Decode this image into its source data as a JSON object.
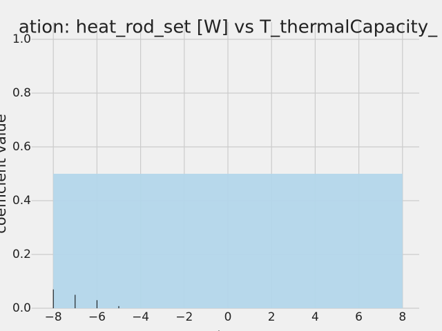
{
  "chart_data": {
    "type": "stem",
    "title": "ation: heat_rod_set [W] vs T_thermalCapacity_",
    "xlabel": "lag",
    "ylabel": "coefficient value",
    "x": [
      -8,
      -7,
      -6,
      -5
    ],
    "values": [
      0.07,
      0.05,
      0.03,
      0.008
    ],
    "color": "#000000",
    "band": {
      "x": [
        -8,
        8
      ],
      "lower": 0,
      "upper": 0.5,
      "color": "#b3d6ea"
    },
    "xlim": [
      -9,
      9
    ],
    "ylim": [
      0,
      1
    ],
    "xticks": [
      {
        "value": -8,
        "label": "−8"
      },
      {
        "value": -6,
        "label": "−6"
      },
      {
        "value": -4,
        "label": "−4"
      },
      {
        "value": -2,
        "label": "−2"
      },
      0,
      2,
      4,
      6,
      8
    ],
    "yticks": [
      {
        "value": 0,
        "label": "0.0"
      },
      0.2,
      0.4,
      0.6,
      0.8,
      {
        "value": 1,
        "label": "1.0"
      }
    ],
    "grid": true
  }
}
